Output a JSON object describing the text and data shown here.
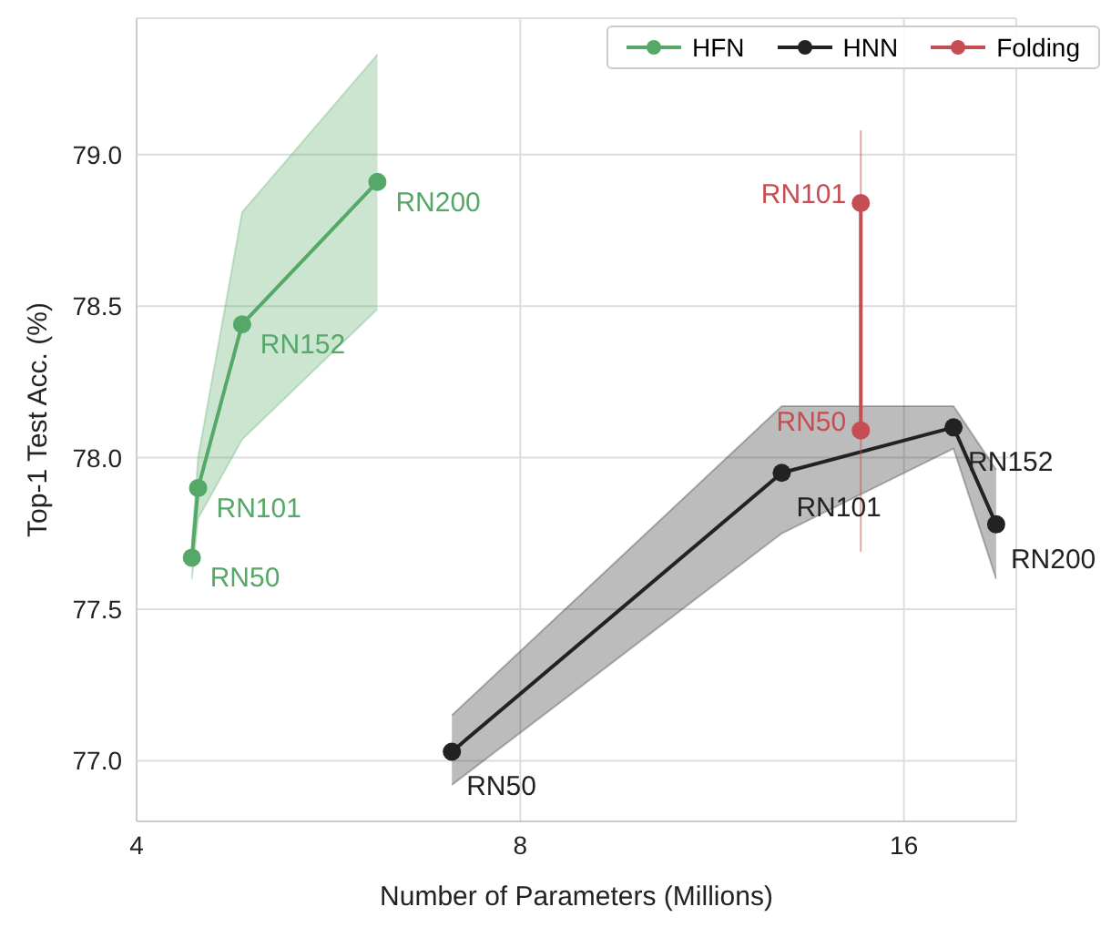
{
  "chart_data": {
    "type": "line",
    "xlabel": "Number of Parameters (Millions)",
    "ylabel": "Top-1 Test Acc. (%)",
    "log": "x",
    "xlim": [
      4,
      19.6
    ],
    "xticks": [
      4,
      8,
      16
    ],
    "ylim": [
      76.8,
      79.45
    ],
    "yticks": [
      {
        "value": 77,
        "label": "77.0"
      },
      {
        "value": 77.5,
        "label": "77.5"
      },
      {
        "value": 78,
        "label": "78.0"
      },
      {
        "value": 78.5,
        "label": "78.5"
      },
      {
        "value": 79,
        "label": "79.0"
      }
    ],
    "grid": true,
    "legend": "top right",
    "marker": "circle",
    "line_style": "solid",
    "series": [
      {
        "name": "HFN",
        "color": "#55a868",
        "x": [
          4.42,
          4.47,
          4.84,
          6.18
        ],
        "values": [
          77.67,
          77.9,
          78.44,
          78.91
        ],
        "lower": [
          77.6,
          77.8,
          78.06,
          78.49
        ],
        "upper": [
          77.72,
          78.0,
          78.81,
          79.33
        ],
        "value_labels": [
          "RN50",
          "RN101",
          "RN152",
          "RN200"
        ]
      },
      {
        "name": "HNN",
        "color": "#222222",
        "x": [
          7.07,
          12.83,
          17.5,
          18.9
        ],
        "values": [
          77.03,
          77.95,
          78.1,
          77.78
        ],
        "lower": [
          76.92,
          77.75,
          78.03,
          77.6
        ],
        "upper": [
          77.15,
          78.17,
          78.17,
          77.96
        ],
        "value_labels": [
          "RN50",
          "RN101",
          "RN152",
          "RN200"
        ]
      },
      {
        "name": "Folding",
        "color": "#c44e52",
        "x": [
          14.8,
          14.8
        ],
        "values": [
          78.84,
          78.09
        ],
        "errors": [
          [
            78.5,
            79.08
          ],
          [
            77.69,
            78.5
          ]
        ],
        "value_labels": [
          "RN101",
          "RN50"
        ]
      }
    ]
  }
}
